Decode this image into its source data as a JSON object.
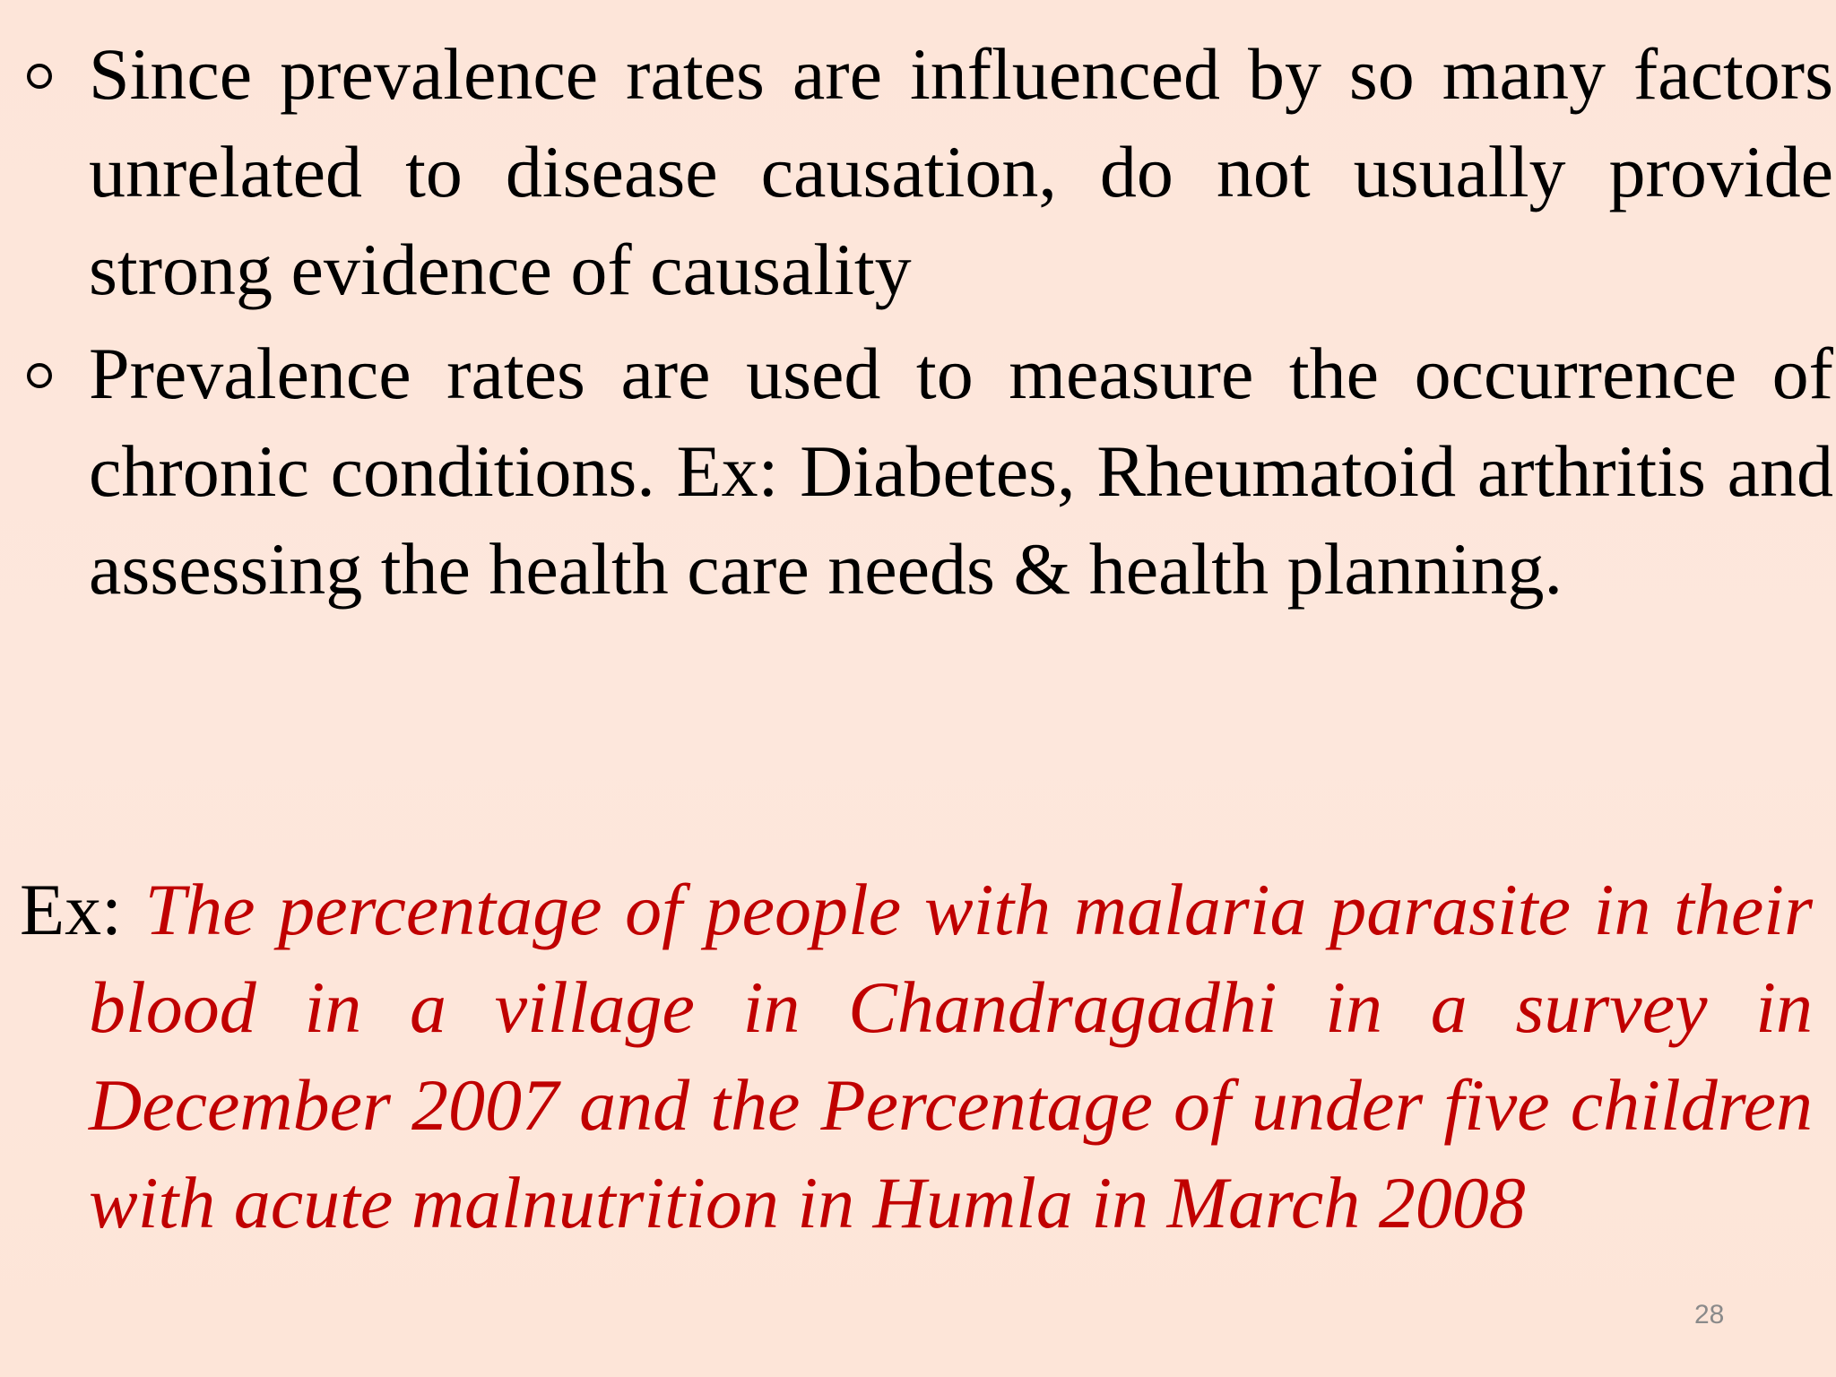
{
  "bullets": [
    {
      "text": "Since prevalence rates are influenced by so many factors unrelated to disease causation, do not usually provide strong evidence of causality"
    },
    {
      "text": "Prevalence rates are used to measure the occurrence of chronic conditions. Ex: Diabetes, Rheumatoid arthritis and assessing the health care needs & health planning."
    }
  ],
  "example": {
    "lead": "Ex: ",
    "text": "The percentage of people with malaria parasite in their blood in a village in Chandragadhi in a survey in December 2007 and the Percentage of under five children with acute malnutrition in Humla in March 2008"
  },
  "page_number": "28",
  "colors": {
    "background": "#fde6da",
    "body_text": "#000000",
    "example_text": "#c00000",
    "page_number": "#8a8a8a"
  }
}
